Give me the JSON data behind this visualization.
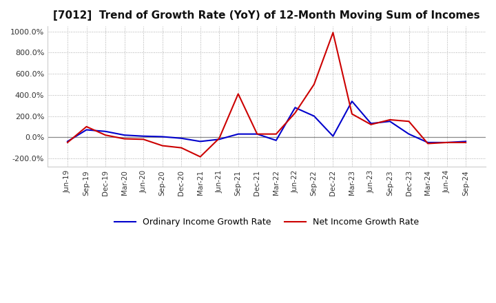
{
  "title": "[7012]  Trend of Growth Rate (YoY) of 12-Month Moving Sum of Incomes",
  "ylim": [
    -280,
    1050
  ],
  "yticks": [
    -200,
    0,
    200,
    400,
    600,
    800,
    1000
  ],
  "background_color": "#ffffff",
  "plot_bg_color": "#ffffff",
  "grid_color": "#aaaaaa",
  "zero_line_color": "#888888",
  "ordinary_color": "#0000cc",
  "net_color": "#cc0000",
  "legend_labels": [
    "Ordinary Income Growth Rate",
    "Net Income Growth Rate"
  ],
  "dates": [
    "Jun-19",
    "Sep-19",
    "Dec-19",
    "Mar-20",
    "Jun-20",
    "Sep-20",
    "Dec-20",
    "Mar-21",
    "Jun-21",
    "Sep-21",
    "Dec-21",
    "Mar-22",
    "Jun-22",
    "Sep-22",
    "Dec-22",
    "Mar-23",
    "Jun-23",
    "Sep-23",
    "Dec-23",
    "Mar-24",
    "Jun-24",
    "Sep-24"
  ],
  "ordinary": [
    -40,
    70,
    55,
    20,
    10,
    5,
    -10,
    -40,
    -20,
    30,
    30,
    -30,
    280,
    200,
    10,
    340,
    130,
    150,
    30,
    -50,
    -50,
    -40
  ],
  "net": [
    -50,
    100,
    20,
    -15,
    -20,
    -80,
    -100,
    -185,
    -10,
    410,
    30,
    30,
    230,
    500,
    990,
    220,
    120,
    165,
    150,
    -60,
    -50,
    -50
  ]
}
